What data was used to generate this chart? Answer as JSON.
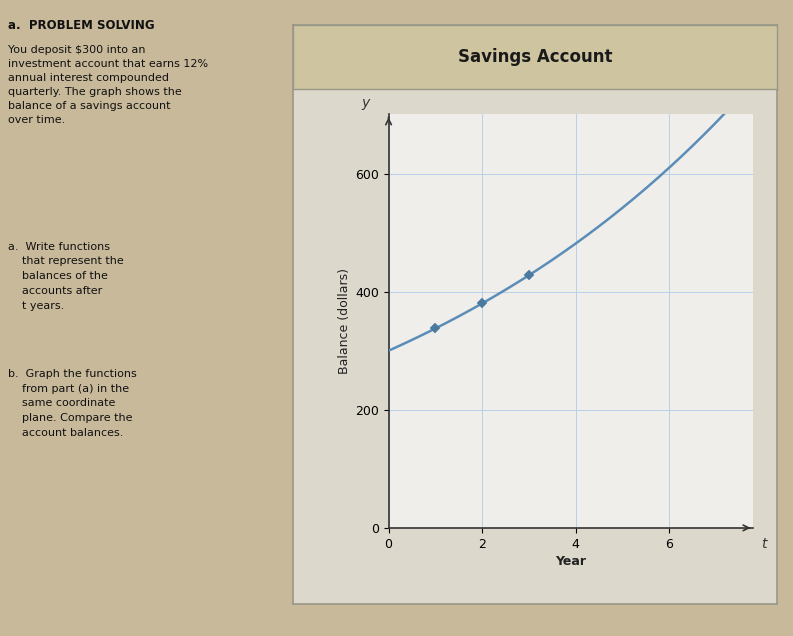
{
  "title": "Savings Account",
  "xlabel": "Year",
  "ylabel": "Balance (dollars)",
  "principal": 300,
  "rate": 0.12,
  "n": 4,
  "x_max": 7.8,
  "y_max": 700,
  "yticks": [
    0,
    200,
    400,
    600
  ],
  "xticks": [
    0,
    2,
    4,
    6
  ],
  "marker_years": [
    1,
    2,
    3
  ],
  "line_color": "#5b8db8",
  "marker_color": "#4a7aa0",
  "grid_color": "#b8d0e8",
  "title_bg_color": "#cfc4a0",
  "plot_bg_color": "#f0eeea",
  "outer_bg_color": "#ddd8cc",
  "page_bg_color": "#c8b99a",
  "title_fontsize": 12,
  "axis_label_fontsize": 9,
  "tick_fontsize": 9
}
